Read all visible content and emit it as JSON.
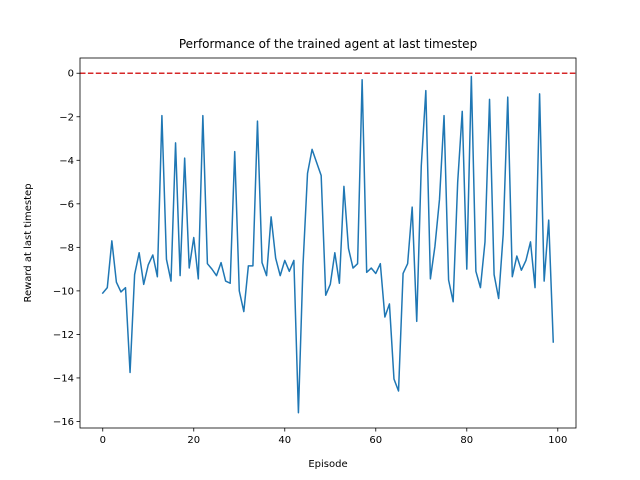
{
  "chart_data": {
    "type": "line",
    "title": "Performance of the trained agent at last timestep",
    "xlabel": "Episode",
    "ylabel": "Reward at last timestep",
    "xlim": [
      -5,
      104
    ],
    "ylim": [
      -16.3,
      0.7
    ],
    "xticks": [
      0,
      20,
      40,
      60,
      80,
      100
    ],
    "yticks": [
      0,
      -2,
      -4,
      -6,
      -8,
      -10,
      -12,
      -14,
      -16
    ],
    "ytick_labels": [
      "0",
      "−2",
      "−4",
      "−6",
      "−8",
      "−10",
      "−12",
      "−14",
      "−16"
    ],
    "grid": false,
    "series": [
      {
        "color": "#1f77b4",
        "x": [
          0,
          1,
          2,
          3,
          4,
          5,
          6,
          7,
          8,
          9,
          10,
          11,
          12,
          13,
          14,
          15,
          16,
          17,
          18,
          19,
          20,
          21,
          22,
          23,
          24,
          25,
          26,
          27,
          28,
          29,
          30,
          31,
          32,
          33,
          34,
          35,
          36,
          37,
          38,
          39,
          40,
          41,
          42,
          43,
          44,
          45,
          46,
          47,
          48,
          49,
          50,
          51,
          52,
          53,
          54,
          55,
          56,
          57,
          58,
          59,
          60,
          61,
          62,
          63,
          64,
          65,
          66,
          67,
          68,
          69,
          70,
          71,
          72,
          73,
          74,
          75,
          76,
          77,
          78,
          79,
          80,
          81,
          82,
          83,
          84,
          85,
          86,
          87,
          88,
          89,
          90,
          91,
          92,
          93,
          94,
          95,
          96,
          97,
          98,
          99
        ],
        "values": [
          -10.1,
          -9.85,
          -7.7,
          -9.6,
          -10.05,
          -9.85,
          -13.75,
          -9.25,
          -8.25,
          -9.7,
          -8.8,
          -8.35,
          -9.35,
          -1.95,
          -8.55,
          -9.55,
          -3.2,
          -9.3,
          -3.9,
          -8.95,
          -7.55,
          -9.45,
          -1.95,
          -8.75,
          -9.0,
          -9.3,
          -8.7,
          -9.55,
          -9.65,
          -3.6,
          -10.0,
          -10.95,
          -8.85,
          -8.85,
          -2.2,
          -8.7,
          -9.3,
          -6.6,
          -8.5,
          -9.3,
          -8.6,
          -9.1,
          -8.6,
          -15.6,
          -8.85,
          -4.6,
          -3.5,
          -4.1,
          -4.7,
          -10.2,
          -9.7,
          -8.25,
          -9.65,
          -5.2,
          -8.05,
          -8.95,
          -8.75,
          -0.3,
          -9.15,
          -8.95,
          -9.2,
          -8.75,
          -11.2,
          -10.6,
          -14.05,
          -14.6,
          -9.2,
          -8.75,
          -6.15,
          -11.4,
          -4.25,
          -0.8,
          -9.45,
          -7.95,
          -5.8,
          -1.95,
          -9.5,
          -10.5,
          -5.0,
          -1.75,
          -9.0,
          -0.15,
          -9.1,
          -9.85,
          -7.75,
          -1.2,
          -9.25,
          -10.35,
          -7.4,
          -1.1,
          -9.35,
          -8.4,
          -9.05,
          -8.6,
          -7.75,
          -9.85,
          -0.95,
          -9.55,
          -6.75,
          -12.35
        ]
      }
    ],
    "reference_line": {
      "y": 0,
      "color": "#d62728",
      "style": "dashed"
    }
  }
}
